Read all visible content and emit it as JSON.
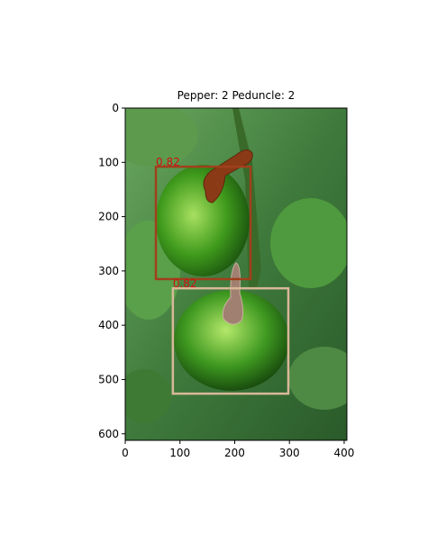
{
  "chart_data": {
    "type": "image",
    "title": "Pepper: 2 Peduncle: 2",
    "xlim": [
      0,
      405
    ],
    "ylim": [
      612,
      0
    ],
    "xticks": [
      0,
      100,
      200,
      300,
      400
    ],
    "yticks": [
      0,
      100,
      200,
      300,
      400,
      500,
      600
    ],
    "boxes": [
      {
        "x": [
          56,
          229
        ],
        "y": [
          108,
          315
        ],
        "score": 0.82,
        "color": "#a0401c"
      },
      {
        "x": [
          87,
          298
        ],
        "y": [
          332,
          526
        ],
        "score": 0.82,
        "color": "#d8b898"
      }
    ]
  }
}
